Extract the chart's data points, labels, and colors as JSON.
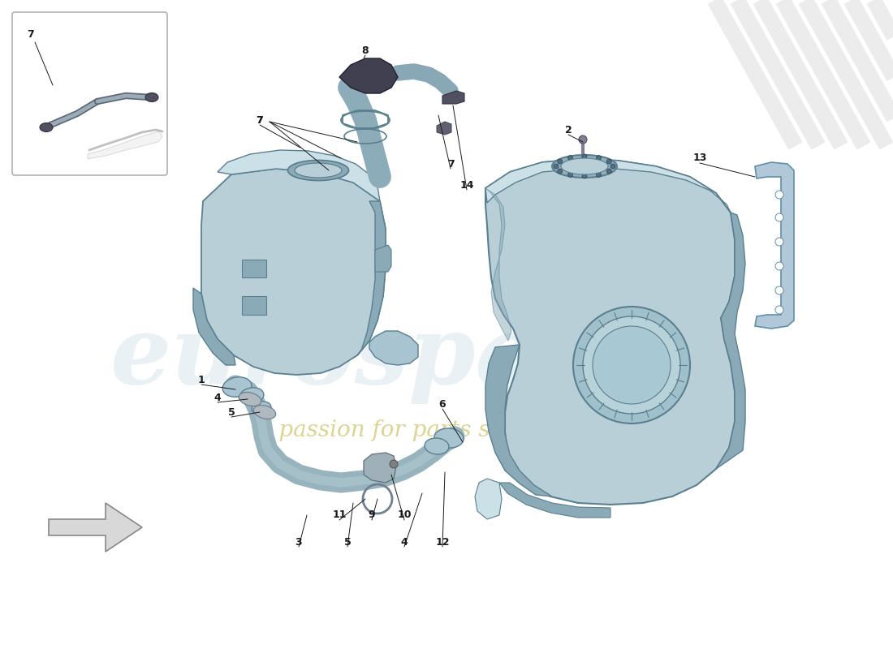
{
  "bg": "#ffffff",
  "tf": "#b8cfd8",
  "tf_dark": "#8aaab8",
  "tf_light": "#cce0e8",
  "te": "#5a8090",
  "lc": "#1a1a1a",
  "wm1": "#ccdde5",
  "wm2": "#d8cc80",
  "pipe_f": "#a8c4d0",
  "pipe_e": "#5a8090",
  "bracket_f": "#b0c8d8",
  "bracket_e": "#6090a8",
  "dark_part": "#404050",
  "gray_part": "#909090"
}
